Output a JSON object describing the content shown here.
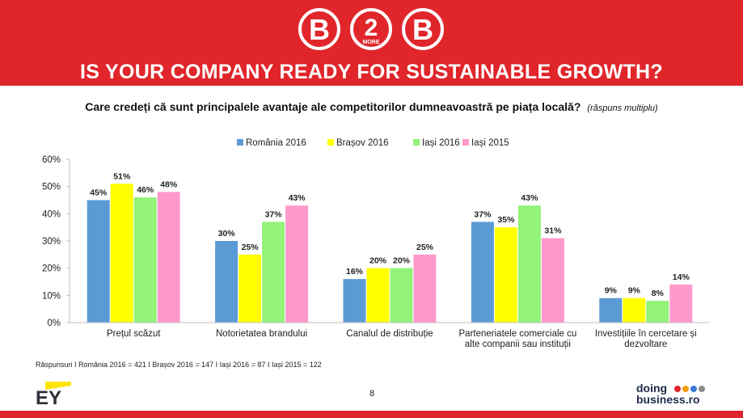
{
  "header": {
    "logo_left": "B",
    "logo_middle": "2",
    "logo_more": "MORE",
    "logo_right": "B",
    "title": "IS YOUR COMPANY READY FOR SUSTAINABLE GROWTH?",
    "color": "#e0262b"
  },
  "question": {
    "text": "Care credeți că sunt principalele avantaje ale competitorilor dumneavoastră pe piața locală?",
    "note": "(răspuns multiplu)"
  },
  "chart_data": {
    "type": "bar",
    "categories": [
      [
        "Prețul scăzut"
      ],
      [
        "Notorietatea brandului"
      ],
      [
        "Canalul de distribuție"
      ],
      [
        "Parteneriatele comerciale cu",
        "alte companii sau instituții"
      ],
      [
        "Investițiile în cercetare și",
        "dezvoltare"
      ]
    ],
    "series": [
      {
        "name": "România 2016",
        "color": "#5b9bd5",
        "values": [
          45,
          30,
          16,
          37,
          9
        ]
      },
      {
        "name": "Brașov 2016",
        "color": "#ffff00",
        "values": [
          51,
          25,
          20,
          35,
          9
        ]
      },
      {
        "name": "Iași 2016",
        "color": "#92f27a",
        "values": [
          46,
          37,
          20,
          43,
          8
        ]
      },
      {
        "name": "Iași 2015",
        "color": "#ff99cc",
        "values": [
          48,
          43,
          25,
          31,
          14
        ]
      }
    ],
    "yticks": [
      "0%",
      "10%",
      "20%",
      "30%",
      "40%",
      "50%",
      "60%"
    ],
    "ylim": [
      0,
      60
    ],
    "value_suffix": "%",
    "legend": "top",
    "grid": false
  },
  "footer": {
    "responses": "Răspunsuri I România 2016 = 421 I Brașov 2016 = 147 I Iași 2016 = 87 I Iași 2015 = 122",
    "page_number": "8",
    "ey_logo": "EY",
    "db_line1": "doing",
    "db_line2": "business.ro",
    "db_dot_colors": [
      "#e0262b",
      "#f39c12",
      "#3a7bd5",
      "#8a8a8a"
    ]
  }
}
